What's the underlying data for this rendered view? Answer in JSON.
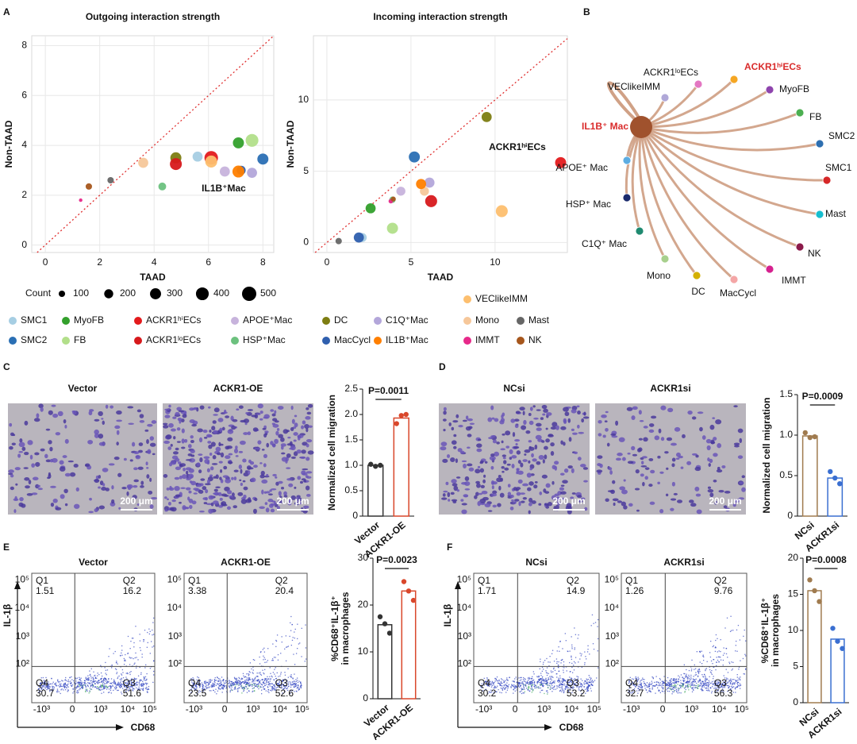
{
  "panel_labels": [
    "A",
    "B",
    "C",
    "D",
    "E",
    "F"
  ],
  "legend": {
    "names": [
      "SMC1",
      "MyoFB",
      "ACKR1ʰⁱECs",
      "APOE⁺Mac",
      "DC",
      "C1Q⁺Mac",
      "Mono",
      "Mast",
      "SMC2",
      "FB",
      "ACKR1ˡᵒECs",
      "HSP⁺Mac",
      "MacCycl",
      "IL1B⁺Mac",
      "IMMT",
      "NK",
      "VEClikeIMM"
    ],
    "colors": [
      "#a6cee3",
      "#33a02c",
      "#e31a1c",
      "#c7b3dc",
      "#7d7d12",
      "#b3a6da",
      "#f6c79a",
      "#666666",
      "#2a6fb4",
      "#b2df8a",
      "#d7191c",
      "#6cc17e",
      "#2f5fae",
      "#ff7f00",
      "#e7298a",
      "#a6561c",
      "#fdbf6f"
    ]
  },
  "size_legend": {
    "title": "Count",
    "values": [
      100,
      200,
      300,
      400,
      500
    ]
  },
  "chart_data": [
    {
      "type": "scatter",
      "title": "Outgoing interaction strength",
      "x_label": "TAAD",
      "y_label": "Non-TAAD",
      "annotation": "IL1B⁺Mac",
      "x": [
        5.6,
        7.1,
        6.1,
        6.6,
        4.8,
        7.6,
        3.6,
        2.4,
        8.0,
        7.6,
        4.8,
        4.3,
        7.2,
        7.1,
        1.3,
        1.6,
        6.1
      ],
      "y": [
        3.55,
        4.1,
        3.5,
        2.95,
        3.5,
        2.9,
        3.3,
        2.6,
        3.45,
        4.2,
        3.25,
        2.35,
        3.0,
        2.95,
        1.8,
        2.35,
        3.35
      ],
      "sizes": [
        250,
        300,
        450,
        250,
        300,
        250,
        250,
        100,
        300,
        400,
        350,
        150,
        200,
        350,
        30,
        100,
        350
      ],
      "xlim": [
        -0.5,
        8.4
      ],
      "ylim": [
        -0.3,
        8.4
      ],
      "xticks": [
        0,
        2,
        4,
        6,
        8
      ],
      "yticks": [
        0,
        2,
        4,
        6,
        8
      ],
      "grid": true
    },
    {
      "type": "scatter",
      "title": "Incoming interaction strength",
      "x_label": "TAAD",
      "y_label": "Non-TAAD",
      "annotation": "ACKR1ʰⁱECs",
      "x": [
        2.1,
        2.6,
        13.9,
        4.4,
        9.5,
        6.1,
        5.8,
        0.7,
        5.2,
        3.9,
        6.2,
        3.9,
        1.9,
        5.6,
        3.8,
        3.95,
        10.4
      ],
      "y": [
        0.35,
        2.4,
        5.6,
        3.6,
        8.8,
        4.2,
        3.6,
        0.1,
        6.0,
        1.0,
        2.9,
        3.0,
        0.35,
        4.1,
        2.9,
        3.05,
        2.2
      ],
      "sizes": [
        200,
        250,
        300,
        200,
        250,
        250,
        200,
        100,
        300,
        300,
        350,
        100,
        250,
        250,
        50,
        60,
        350
      ],
      "xlim": [
        -0.8,
        14.3
      ],
      "ylim": [
        -0.7,
        14.5
      ],
      "xticks": [
        0,
        5,
        10
      ],
      "yticks": [
        0,
        5,
        10
      ],
      "grid": true
    },
    {
      "type": "bar",
      "y_label": [
        "Normalized cell migration"
      ],
      "categories": [
        "Vector",
        "ACKR1-OE"
      ],
      "values": [
        1.0,
        1.93
      ],
      "points": [
        [
          1.02,
          0.98,
          1.0
        ],
        [
          1.82,
          1.98,
          2.0
        ]
      ],
      "colors": [
        "#333333",
        "#d9472b"
      ],
      "annotation": "P=0.0011",
      "ylim": [
        0,
        2.5
      ],
      "yticks": [
        0,
        0.5,
        {
          "value": 1,
          "label": "1.0"
        },
        1.5,
        {
          "value": 2,
          "label": "2.0"
        },
        2.5
      ]
    },
    {
      "type": "bar",
      "y_label": [
        "Normalized cell migration"
      ],
      "categories": [
        "NCsi",
        "ACKR1si"
      ],
      "values": [
        0.99,
        0.47
      ],
      "points": [
        [
          1.03,
          0.97,
          0.98
        ],
        [
          0.55,
          0.47,
          0.4
        ]
      ],
      "colors": [
        "#a07b4f",
        "#3a6fd1"
      ],
      "annotation": "P=0.0009",
      "ylim": [
        0,
        1.5
      ],
      "yticks": [
        0,
        0.5,
        {
          "value": 1,
          "label": "1.0"
        },
        1.5
      ]
    },
    {
      "type": "bar",
      "y_label": [
        "%CD68⁺IL-1β⁺",
        "in macrophages"
      ],
      "categories": [
        "Vector",
        "ACKR1-OE"
      ],
      "values": [
        15.8,
        23
      ],
      "points": [
        [
          17.5,
          16,
          14
        ],
        [
          25,
          23,
          21
        ]
      ],
      "colors": [
        "#333333",
        "#d9472b"
      ],
      "annotation": "P=0.0023",
      "ylim": [
        0,
        30
      ],
      "yticks": [
        0,
        10,
        20,
        30
      ]
    },
    {
      "type": "bar",
      "y_label": [
        "%CD68⁺IL-1β⁺",
        "in macrophages"
      ],
      "categories": [
        "NCsi",
        "ACKR1si"
      ],
      "values": [
        15.5,
        8.8
      ],
      "points": [
        [
          17,
          15.5,
          14
        ],
        [
          10.3,
          8.5,
          7.5
        ]
      ],
      "colors": [
        "#a07b4f",
        "#3a6fd1"
      ],
      "annotation": "P=0.0008",
      "ylim": [
        0,
        20
      ],
      "yticks": [
        0,
        5,
        10,
        15,
        20
      ]
    }
  ],
  "network": {
    "source": {
      "label": "IL1B⁺ Mac",
      "color": "#a0522d",
      "highlight": true
    },
    "targets": [
      {
        "label": "ACKR1ˡᵒECs",
        "color": "#e377c2"
      },
      {
        "label": "ACKR1ʰⁱECs",
        "color": "#f5a623",
        "highlight": true
      },
      {
        "label": "VEClikeIMM",
        "color": "#b0a8d8"
      },
      {
        "label": "MyoFB",
        "color": "#8e44ad"
      },
      {
        "label": "FB",
        "color": "#4caf50"
      },
      {
        "label": "SMC2",
        "color": "#2e6fb0"
      },
      {
        "label": "SMC1",
        "color": "#d62728"
      },
      {
        "label": "APOE⁺ Mac",
        "color": "#5dade2"
      },
      {
        "label": "HSP⁺ Mac",
        "color": "#1a2a6c"
      },
      {
        "label": "Mast",
        "color": "#17becf"
      },
      {
        "label": "C1Q⁺ Mac",
        "color": "#1f8a70"
      },
      {
        "label": "NK",
        "color": "#8b1a4a"
      },
      {
        "label": "Mono",
        "color": "#a8d08d"
      },
      {
        "label": "IMMT",
        "color": "#d6218f"
      },
      {
        "label": "DC",
        "color": "#d4b000"
      },
      {
        "label": "MacCycl",
        "color": "#f4a6a6"
      }
    ]
  },
  "micrographs": [
    {
      "title": "Vector",
      "scale": "200 μm"
    },
    {
      "title": "ACKR1-OE",
      "scale": "200 μm"
    },
    {
      "title": "NCsi",
      "scale": "200 μm"
    },
    {
      "title": "ACKR1si",
      "scale": "200 μm"
    }
  ],
  "flow": {
    "x_label": "CD68",
    "y_label": "IL-1β",
    "x_ticks": [
      "-10³",
      "0",
      "10³",
      "10⁴",
      "10⁵"
    ],
    "y_ticks": [
      "10⁵",
      "10⁴",
      "10³",
      "10²"
    ],
    "plots": [
      {
        "title": "Vector",
        "quadrants": [
          {
            "name": "Q1",
            "value": 1.51
          },
          {
            "name": "Q2",
            "value": 16.2
          },
          {
            "name": "Q4",
            "value": 30.7
          },
          {
            "name": "Q3",
            "value": 51.6
          }
        ]
      },
      {
        "title": "ACKR1-OE",
        "quadrants": [
          {
            "name": "Q1",
            "value": 3.38
          },
          {
            "name": "Q2",
            "value": 20.4
          },
          {
            "name": "Q4",
            "value": 23.5
          },
          {
            "name": "Q3",
            "value": 52.6
          }
        ]
      },
      {
        "title": "NCsi",
        "quadrants": [
          {
            "name": "Q1",
            "value": 1.71
          },
          {
            "name": "Q2",
            "value": 14.9
          },
          {
            "name": "Q4",
            "value": 30.2
          },
          {
            "name": "Q3",
            "value": 53.2
          }
        ]
      },
      {
        "title": "ACKR1si",
        "quadrants": [
          {
            "name": "Q1",
            "value": 1.26
          },
          {
            "name": "Q2",
            "value": 9.76
          },
          {
            "name": "Q4",
            "value": 32.7
          },
          {
            "name": "Q3",
            "value": 56.3
          }
        ]
      }
    ]
  }
}
